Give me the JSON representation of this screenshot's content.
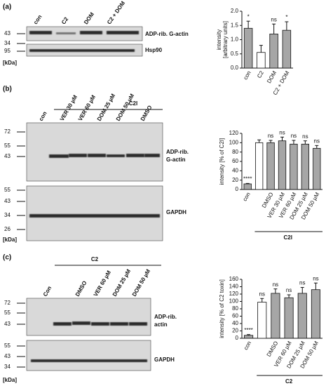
{
  "panels": [
    {
      "label": "(a)",
      "lanes": [
        "con",
        "C2",
        "DOM",
        "C2 + DOM"
      ],
      "markers_top": [
        43,
        34
      ],
      "markers_bottom": [
        95
      ],
      "band_labels": [
        "ADP-rib. G-actin",
        "Hsp90"
      ],
      "unit": "[kDa]"
    },
    {
      "label": "(b)",
      "treatment": "C2I",
      "lanes": [
        "con",
        "VER 30 µM",
        "VER 60 µM",
        "DOM 25 µM",
        "DOM 50 µM",
        "DMSO"
      ],
      "markers_top": [
        72,
        55,
        43
      ],
      "markers_bottom": [
        55,
        43,
        34,
        26
      ],
      "band_labels": [
        "ADP-rib.",
        "G-actin",
        "GAPDH"
      ],
      "unit": "[kDa]"
    },
    {
      "label": "(c)",
      "treatment": "C2",
      "lanes": [
        "Con",
        "DMSO",
        "VER 60 µM",
        "DOM 25 µM",
        "DOM 50 µM"
      ],
      "markers_top": [
        72,
        55,
        43
      ],
      "markers_bottom": [
        55,
        43,
        34
      ],
      "band_labels": [
        "ADP-rib.",
        "actin",
        "GAPDH"
      ],
      "unit": "[kDa]"
    }
  ],
  "chart_data": [
    {
      "type": "bar",
      "ylabel": [
        "intensity",
        "[arbitrary units]"
      ],
      "categories": [
        "con",
        "C2",
        "DOM",
        "C2 + DOM"
      ],
      "values": [
        1.4,
        0.55,
        1.2,
        1.33
      ],
      "errors": [
        0.25,
        0.25,
        0.35,
        0.3
      ],
      "annotations": [
        "*",
        null,
        "ns",
        "*"
      ],
      "colors": [
        "#a6a6a6",
        "#ffffff",
        "#a6a6a6",
        "#a6a6a6"
      ],
      "ylim": [
        0,
        2
      ],
      "yticks": [
        {
          "value": 0,
          "label": "0.0"
        },
        {
          "value": 0.5,
          "label": "0.5"
        },
        {
          "value": 1,
          "label": "1.0"
        },
        {
          "value": 1.5,
          "label": "1.5"
        },
        {
          "value": 2,
          "label": "2.0"
        }
      ]
    },
    {
      "type": "bar",
      "ylabel": "intensity [% of C2I]",
      "categories": [
        "con",
        null,
        "DMSO",
        "VER 30 µM",
        "VER 60 µM",
        "DOM 25 µM",
        "DOM 50 µM"
      ],
      "values": [
        12,
        100,
        100,
        104,
        97,
        97,
        88
      ],
      "errors": [
        1,
        6,
        5,
        8,
        8,
        7,
        6
      ],
      "annotations": [
        "****",
        null,
        "ns",
        "ns",
        "ns",
        "ns",
        "ns"
      ],
      "colors": [
        "#a6a6a6",
        "#ffffff",
        "#a6a6a6",
        "#a6a6a6",
        "#a6a6a6",
        "#a6a6a6",
        "#a6a6a6"
      ],
      "group_label": "C2I",
      "ylim": [
        0,
        120
      ],
      "yticks": [
        0,
        20,
        40,
        60,
        80,
        100,
        120
      ]
    },
    {
      "type": "bar",
      "ylabel": "intensity [% of C2 toxin]",
      "categories": [
        "con",
        null,
        "DMSO",
        "VER 60 µM",
        "DOM 25 µM",
        "DOM 50 µM"
      ],
      "values": [
        8,
        98,
        122,
        110,
        122,
        132
      ],
      "errors": [
        2,
        10,
        12,
        8,
        16,
        18
      ],
      "annotations": [
        "****",
        "ns",
        "ns",
        "ns",
        "ns",
        "ns"
      ],
      "colors": [
        "#a6a6a6",
        "#ffffff",
        "#a6a6a6",
        "#a6a6a6",
        "#a6a6a6",
        "#a6a6a6"
      ],
      "group_label": "C2",
      "ylim": [
        0,
        160
      ],
      "yticks": [
        0,
        20,
        40,
        60,
        80,
        100,
        120,
        140,
        160
      ]
    }
  ]
}
